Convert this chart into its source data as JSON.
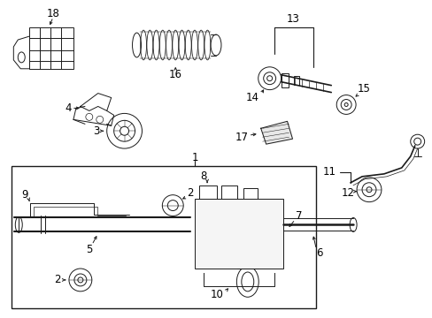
{
  "bg_color": "#ffffff",
  "line_color": "#1a1a1a",
  "fig_width": 4.89,
  "fig_height": 3.6,
  "dpi": 100,
  "label_fontsize": 8.5,
  "label_fontsize_sm": 7.5
}
